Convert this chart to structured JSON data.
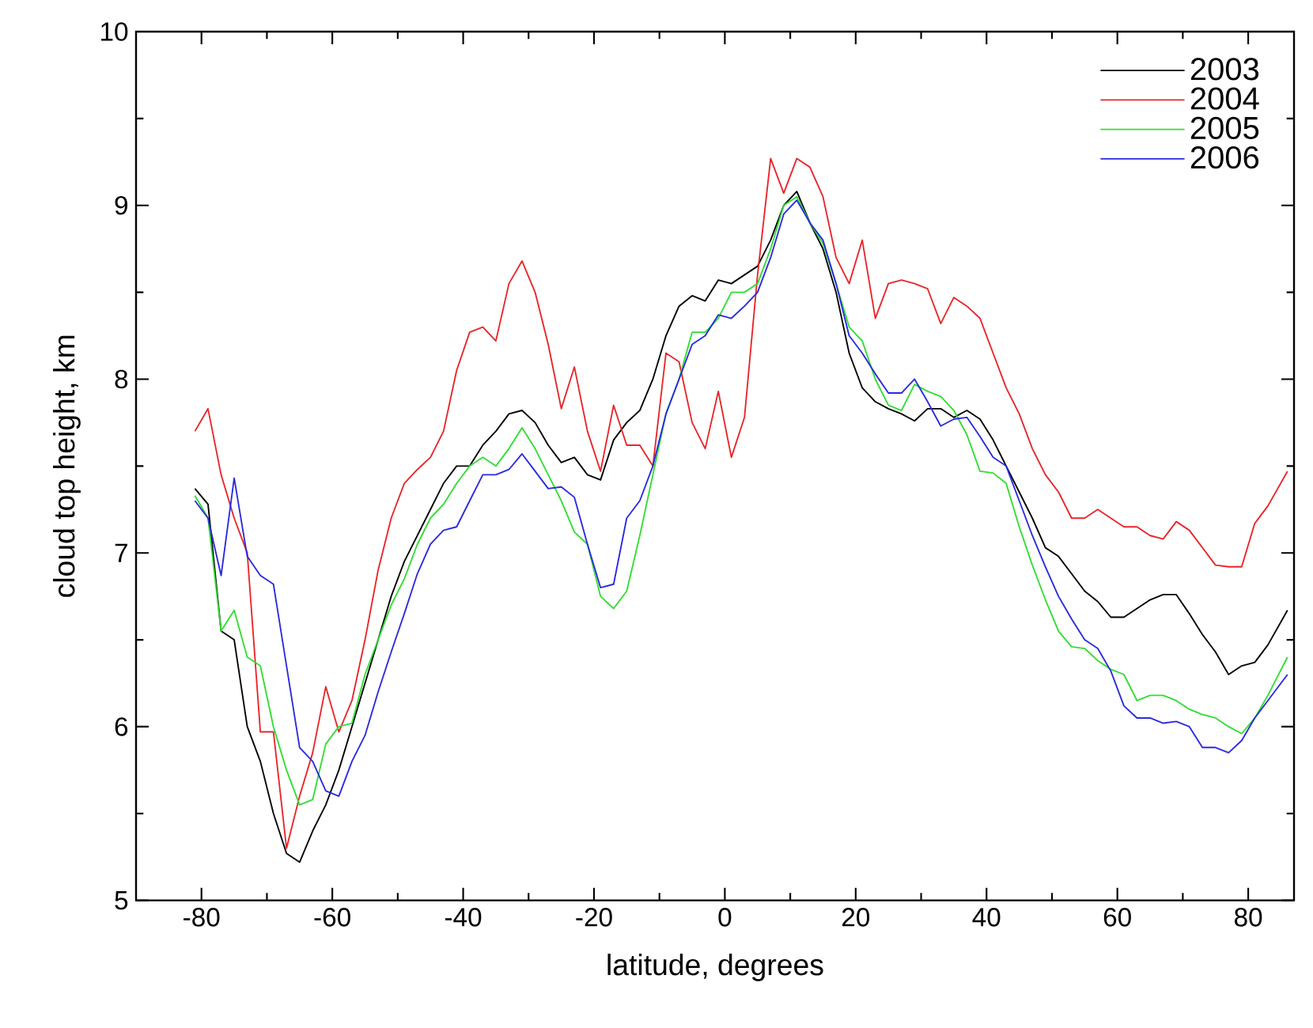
{
  "chart_data": {
    "type": "line",
    "xlabel": "latitude, degrees",
    "ylabel": "cloud top height, km",
    "x": [
      -81,
      -79,
      -77,
      -75,
      -73,
      -71,
      -69,
      -67,
      -65,
      -63,
      -61,
      -59,
      -57,
      -55,
      -53,
      -51,
      -49,
      -47,
      -45,
      -43,
      -41,
      -39,
      -37,
      -35,
      -33,
      -31,
      -29,
      -27,
      -25,
      -23,
      -21,
      -19,
      -17,
      -15,
      -13,
      -11,
      -9,
      -7,
      -5,
      -3,
      -1,
      1,
      3,
      5,
      7,
      9,
      11,
      13,
      15,
      17,
      19,
      21,
      23,
      25,
      27,
      29,
      31,
      33,
      35,
      37,
      39,
      41,
      43,
      45,
      47,
      49,
      51,
      53,
      55,
      57,
      59,
      61,
      63,
      65,
      67,
      69,
      71,
      73,
      75,
      77,
      79,
      81,
      83,
      86
    ],
    "series": [
      {
        "name": "2003",
        "color": "#000000",
        "values": [
          7.37,
          7.28,
          6.55,
          6.5,
          6.0,
          5.8,
          5.5,
          5.27,
          5.22,
          5.4,
          5.55,
          5.75,
          6.0,
          6.25,
          6.5,
          6.75,
          6.95,
          7.1,
          7.25,
          7.4,
          7.5,
          7.5,
          7.62,
          7.7,
          7.8,
          7.82,
          7.75,
          7.62,
          7.52,
          7.55,
          7.45,
          7.42,
          7.65,
          7.75,
          7.82,
          8.0,
          8.25,
          8.42,
          8.48,
          8.45,
          8.57,
          8.55,
          8.6,
          8.65,
          8.8,
          9.0,
          9.08,
          8.9,
          8.75,
          8.5,
          8.15,
          7.95,
          7.87,
          7.83,
          7.8,
          7.76,
          7.83,
          7.83,
          7.78,
          7.82,
          7.77,
          7.65,
          7.5,
          7.35,
          7.2,
          7.03,
          6.98,
          6.88,
          6.78,
          6.72,
          6.63,
          6.63,
          6.68,
          6.73,
          6.76,
          6.76,
          6.65,
          6.53,
          6.43,
          6.3,
          6.35,
          6.37,
          6.47,
          6.67
        ]
      },
      {
        "name": "2004",
        "color": "#e8262a",
        "values": [
          7.7,
          7.83,
          7.45,
          7.2,
          7.0,
          5.97,
          5.97,
          5.3,
          5.6,
          5.85,
          6.23,
          5.97,
          6.15,
          6.5,
          6.9,
          7.2,
          7.4,
          7.48,
          7.55,
          7.7,
          8.05,
          8.27,
          8.3,
          8.22,
          8.55,
          8.68,
          8.5,
          8.2,
          7.83,
          8.07,
          7.7,
          7.47,
          7.85,
          7.62,
          7.62,
          7.5,
          8.15,
          8.1,
          7.75,
          7.6,
          7.93,
          7.55,
          7.78,
          8.6,
          9.27,
          9.07,
          9.27,
          9.22,
          9.05,
          8.7,
          8.55,
          8.8,
          8.35,
          8.55,
          8.57,
          8.55,
          8.52,
          8.32,
          8.47,
          8.42,
          8.35,
          8.15,
          7.95,
          7.8,
          7.6,
          7.45,
          7.35,
          7.2,
          7.2,
          7.25,
          7.2,
          7.15,
          7.15,
          7.1,
          7.08,
          7.18,
          7.13,
          7.03,
          6.93,
          6.92,
          6.92,
          7.17,
          7.27,
          7.47
        ]
      },
      {
        "name": "2005",
        "color": "#33dd33",
        "values": [
          7.33,
          7.2,
          6.55,
          6.67,
          6.4,
          6.35,
          6.0,
          5.75,
          5.55,
          5.58,
          5.9,
          6.0,
          6.02,
          6.3,
          6.5,
          6.7,
          6.85,
          7.05,
          7.2,
          7.28,
          7.4,
          7.5,
          7.55,
          7.5,
          7.6,
          7.72,
          7.6,
          7.45,
          7.3,
          7.12,
          7.05,
          6.75,
          6.68,
          6.78,
          7.1,
          7.45,
          7.8,
          8.0,
          8.27,
          8.27,
          8.35,
          8.5,
          8.5,
          8.55,
          8.75,
          9.0,
          9.05,
          8.9,
          8.78,
          8.55,
          8.3,
          8.22,
          8.0,
          7.85,
          7.82,
          7.97,
          7.93,
          7.9,
          7.82,
          7.68,
          7.47,
          7.46,
          7.4,
          7.15,
          6.93,
          6.73,
          6.55,
          6.46,
          6.45,
          6.38,
          6.33,
          6.3,
          6.15,
          6.18,
          6.18,
          6.15,
          6.1,
          6.07,
          6.05,
          6.0,
          5.96,
          6.05,
          6.18,
          6.4
        ]
      },
      {
        "name": "2006",
        "color": "#2a2ae0",
        "values": [
          7.3,
          7.2,
          6.87,
          7.43,
          6.98,
          6.87,
          6.82,
          6.35,
          5.88,
          5.8,
          5.63,
          5.6,
          5.8,
          5.95,
          6.2,
          6.43,
          6.65,
          6.88,
          7.05,
          7.13,
          7.15,
          7.3,
          7.45,
          7.45,
          7.48,
          7.57,
          7.47,
          7.37,
          7.38,
          7.32,
          7.05,
          6.8,
          6.82,
          7.2,
          7.3,
          7.5,
          7.8,
          8.0,
          8.2,
          8.25,
          8.37,
          8.35,
          8.42,
          8.5,
          8.7,
          8.95,
          9.03,
          8.9,
          8.8,
          8.55,
          8.25,
          8.15,
          8.03,
          7.92,
          7.92,
          8.0,
          7.87,
          7.73,
          7.77,
          7.78,
          7.67,
          7.55,
          7.5,
          7.3,
          7.1,
          6.92,
          6.75,
          6.62,
          6.5,
          6.45,
          6.32,
          6.12,
          6.05,
          6.05,
          6.02,
          6.03,
          6.0,
          5.88,
          5.88,
          5.85,
          5.92,
          6.05,
          6.15,
          6.3
        ]
      }
    ],
    "xlim": [
      -90,
      87
    ],
    "ylim": [
      5,
      10
    ],
    "xticks": [
      -80,
      {
        "value": -70,
        "label": null
      },
      -60,
      {
        "value": -50,
        "label": null
      },
      -40,
      {
        "value": -30,
        "label": null
      },
      -20,
      {
        "value": -10,
        "label": null
      },
      0,
      {
        "value": 10,
        "label": null
      },
      20,
      {
        "value": 30,
        "label": null
      },
      40,
      {
        "value": 50,
        "label": null
      },
      60,
      {
        "value": 70,
        "label": null
      },
      80
    ],
    "yticks": [
      5,
      {
        "value": 5.5,
        "label": null
      },
      6,
      {
        "value": 6.5,
        "label": null
      },
      7,
      {
        "value": 7.5,
        "label": null
      },
      8,
      {
        "value": 8.5,
        "label": null
      },
      9,
      {
        "value": 9.5,
        "label": null
      },
      10
    ],
    "grid": false,
    "legend": "top right",
    "marker": "none",
    "line_style": "solid"
  }
}
